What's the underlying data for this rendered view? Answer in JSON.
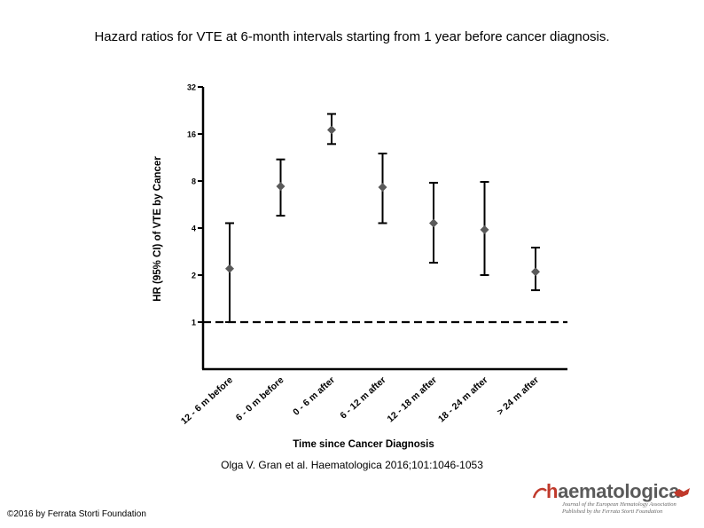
{
  "title": "Hazard ratios for VTE at 6-month intervals starting from 1 year before cancer diagnosis.",
  "citation": "Olga V. Gran et al. Haematologica 2016;101:1046-1053",
  "copyright": "©2016 by Ferrata Storti Foundation",
  "logo": {
    "wordmark_letter": "h",
    "wordmark_rest": "aematologica",
    "tagline1": "Journal of the European Hematology Association",
    "tagline2": "Published by the Ferrata Storti Foundation",
    "accent_color": "#c0392b"
  },
  "chart_data": {
    "type": "scatter",
    "subtype": "point-estimate-with-ci",
    "xlabel": "Time since Cancer Diagnosis",
    "ylabel": "HR (95% CI) of VTE by Cancer",
    "yscale": "log2",
    "ylim": [
      0.5,
      32
    ],
    "yticks": [
      1,
      2,
      4,
      8,
      16,
      32
    ],
    "ytick_labels": [
      "1",
      "2",
      "4",
      "8",
      "16",
      "32"
    ],
    "reference_line": {
      "y": 1,
      "style": "dashed"
    },
    "categories": [
      "12 - 6 m before",
      "6 - 0 m before",
      "0 - 6 m after",
      "6 - 12 m after",
      "12 - 18 m after",
      "18 - 24 m after",
      "> 24 m after"
    ],
    "series": [
      {
        "name": "HR",
        "marker": "diamond",
        "color": "#5a5a5a",
        "values": [
          2.2,
          7.4,
          17.0,
          7.3,
          4.3,
          3.9,
          2.1
        ],
        "ci_low": [
          1.0,
          4.8,
          13.8,
          4.3,
          2.4,
          2.0,
          1.6
        ],
        "ci_high": [
          4.3,
          11.0,
          21.5,
          12.0,
          7.8,
          7.9,
          3.0
        ]
      }
    ]
  }
}
